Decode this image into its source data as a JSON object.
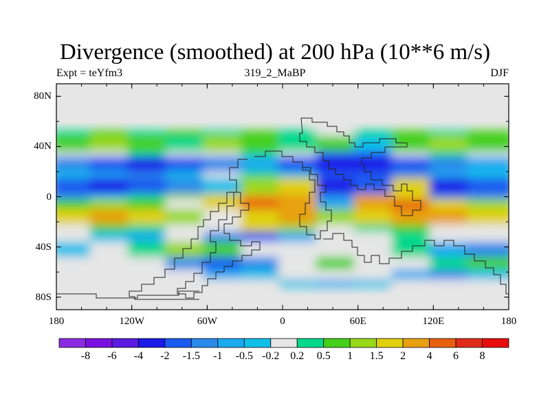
{
  "header": {
    "title": "Divergence (smoothed) at 200 hPa (10**6 m/s)",
    "left": "Expt = teYfm3",
    "center": "319_2_MaBP",
    "right": "DJF"
  },
  "chart_data": {
    "type": "heatmap",
    "title": "Divergence (smoothed) at 200 hPa (10**6 m/s)",
    "variable": "Divergence",
    "level": "200 hPa",
    "units": "10**6 m/s",
    "season": "DJF",
    "experiment": "teYfm3",
    "run": "319_2_MaBP",
    "xlim": [
      -180,
      180
    ],
    "ylim": [
      -90,
      90
    ],
    "x_ticks": [
      {
        "value": -180,
        "label": "180"
      },
      {
        "value": -120,
        "label": "120W"
      },
      {
        "value": -60,
        "label": "60W"
      },
      {
        "value": 0,
        "label": "0"
      },
      {
        "value": 60,
        "label": "60E"
      },
      {
        "value": 120,
        "label": "120E"
      },
      {
        "value": 180,
        "label": "180"
      }
    ],
    "y_ticks": [
      {
        "value": 80,
        "label": "80N"
      },
      {
        "value": 40,
        "label": "40N"
      },
      {
        "value": 0,
        "label": "0"
      },
      {
        "value": -40,
        "label": "40S"
      },
      {
        "value": -80,
        "label": "80S"
      }
    ],
    "colorbar": {
      "labels": [
        "-8",
        "-6",
        "-4",
        "-2",
        "-1.5",
        "-1",
        "-0.5",
        "-0.2",
        "0.2",
        "0.5",
        "1",
        "1.5",
        "2",
        "4",
        "6",
        "8"
      ],
      "colors": [
        "#8a2be2",
        "#7a10e0",
        "#5a1ae0",
        "#1a1ae8",
        "#1a5af0",
        "#2a8aea",
        "#1aaaf0",
        "#10c0e8",
        "#e6e6e6",
        "#00d88c",
        "#44d01a",
        "#9ad81a",
        "#e0d010",
        "#e8a010",
        "#e86010",
        "#e02a1a",
        "#e80c0c"
      ]
    },
    "bands": [
      {
        "lat": [
          53,
          48
        ],
        "colors": [
          "#00d88c",
          "#44d01a",
          "#00d88c",
          "#44d01a",
          "#00d88c",
          "#44d01a",
          "#00d88c",
          "#e6e6e6",
          "#00d88c",
          "#44d01a",
          "#00d88c",
          "#44d01a"
        ]
      },
      {
        "lat": [
          48,
          36
        ],
        "colors": [
          "#44d01a",
          "#9ad81a",
          "#44d01a",
          "#00d88c",
          "#9ad81a",
          "#44d01a",
          "#00d88c",
          "#44d01a",
          "#10c0e8",
          "#44d01a",
          "#9ad81a",
          "#44d01a"
        ]
      },
      {
        "lat": [
          36,
          32
        ],
        "colors": [
          "#e6e6e6",
          "#e6e6e6",
          "#00d88c",
          "#e6e6e6",
          "#e6e6e6",
          "#00d88c",
          "#e6e6e6",
          "#1a5af0",
          "#1a5af0",
          "#e6e6e6",
          "#00d88c",
          "#e6e6e6"
        ]
      },
      {
        "lat": [
          32,
          20
        ],
        "colors": [
          "#2a8aea",
          "#1a5af0",
          "#1a1ae8",
          "#1a5af0",
          "#2a8aea",
          "#1aaaf0",
          "#1a5af0",
          "#1a1ae8",
          "#1a1ae8",
          "#1a5af0",
          "#2a8aea",
          "#1aaaf0"
        ]
      },
      {
        "lat": [
          20,
          15
        ],
        "colors": [
          "#10c0e8",
          "#1aaaf0",
          "#2a8aea",
          "#10c0e8",
          "#e6e6e6",
          "#00d88c",
          "#10c0e8",
          "#1a5af0",
          "#1a5af0",
          "#2a8aea",
          "#1aaaf0",
          "#10c0e8"
        ]
      },
      {
        "lat": [
          15,
          2
        ],
        "colors": [
          "#1a5af0",
          "#1a1ae8",
          "#1a5af0",
          "#2a8aea",
          "#10c0e8",
          "#9ad81a",
          "#e0d010",
          "#1a1ae8",
          "#1a5af0",
          "#e0d010",
          "#1a1ae8",
          "#1a5af0"
        ]
      },
      {
        "lat": [
          2,
          -2
        ],
        "colors": [
          "#2a8aea",
          "#10c0e8",
          "#00d88c",
          "#9ad81a",
          "#e0d010",
          "#e8a010",
          "#e8a010",
          "#2a8aea",
          "#e8a010",
          "#e0d010",
          "#2a8aea",
          "#2a8aea"
        ]
      },
      {
        "lat": [
          -2,
          -10
        ],
        "colors": [
          "#44d01a",
          "#9ad81a",
          "#44d01a",
          "#e6e6e6",
          "#e0d010",
          "#e86010",
          "#e8a010",
          "#1aaaf0",
          "#e8a010",
          "#e86010",
          "#e0d010",
          "#9ad81a"
        ]
      },
      {
        "lat": [
          -10,
          -22
        ],
        "colors": [
          "#e0d010",
          "#e8a010",
          "#e0d010",
          "#9ad81a",
          "#e6e6e6",
          "#e0d010",
          "#e8a010",
          "#9ad81a",
          "#e0d010",
          "#e8a010",
          "#e8a010",
          "#e0d010"
        ]
      },
      {
        "lat": [
          -22,
          -28
        ],
        "colors": [
          "#e6e6e6",
          "#44d01a",
          "#00d88c",
          "#e6e6e6",
          "#e6e6e6",
          "#e0d010",
          "#9ad81a",
          "#e6e6e6",
          "#00d88c",
          "#44d01a",
          "#e6e6e6",
          "#e6e6e6"
        ]
      },
      {
        "lat": [
          -28,
          -36
        ],
        "colors": [
          "#e6e6e6",
          "#10c0e8",
          "#1aaaf0",
          "#e6e6e6",
          "#2a8aea",
          "#1a5af0",
          "#1aaaf0",
          "#e6e6e6",
          "#e6e6e6",
          "#00d88c",
          "#e6e6e6",
          "#e6e6e6"
        ]
      },
      {
        "lat": [
          -36,
          -48
        ],
        "colors": [
          "#10c0e8",
          "#e6e6e6",
          "#00d88c",
          "#9ad81a",
          "#44d01a",
          "#e6e6e6",
          "#e6e6e6",
          "#e6e6e6",
          "#e6e6e6",
          "#00d88c",
          "#1aaaf0",
          "#2a8aea"
        ]
      },
      {
        "lat": [
          -48,
          -58
        ],
        "colors": [
          "#e6e6e6",
          "#e6e6e6",
          "#e6e6e6",
          "#2a8aea",
          "#1a5af0",
          "#2a8aea",
          "#e6e6e6",
          "#44d01a",
          "#e6e6e6",
          "#e6e6e6",
          "#00d88c",
          "#44d01a"
        ]
      },
      {
        "lat": [
          -58,
          -66
        ],
        "colors": [
          "#e6e6e6",
          "#e6e6e6",
          "#e6e6e6",
          "#e6e6e6",
          "#1aaaf0",
          "#10c0e8",
          "#e6e6e6",
          "#e6e6e6",
          "#e6e6e6",
          "#1aaaf0",
          "#2a8aea",
          "#10c0e8"
        ]
      },
      {
        "lat": [
          -66,
          -72
        ],
        "colors": [
          "#e6e6e6",
          "#e6e6e6",
          "#e6e6e6",
          "#e6e6e6",
          "#e6e6e6",
          "#e6e6e6",
          "#10c0e8",
          "#1aaaf0",
          "#10c0e8",
          "#e6e6e6",
          "#e6e6e6",
          "#e6e6e6"
        ]
      }
    ]
  }
}
